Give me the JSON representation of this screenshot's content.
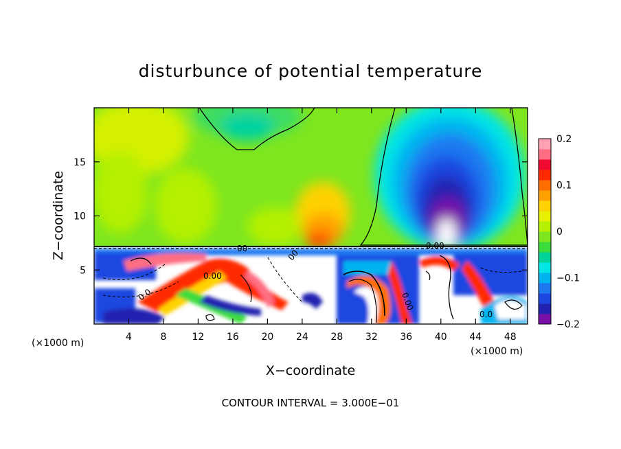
{
  "chart_data": {
    "type": "heatmap",
    "title": "disturbunce of potential temperature",
    "xlabel": "X−coordinate",
    "ylabel": "Z−coordinate",
    "x_unit_left": "(×1000 m)",
    "x_unit_right": "(×1000 m)",
    "xlim": [
      0,
      50
    ],
    "ylim": [
      0,
      20
    ],
    "xticks": [
      4,
      8,
      12,
      16,
      20,
      24,
      28,
      32,
      36,
      40,
      44,
      48
    ],
    "yticks": [
      5,
      10,
      15
    ],
    "colorbar": {
      "ticks": [
        {
          "value": 0.2,
          "label": "0.2"
        },
        {
          "value": 0.1,
          "label": "0.1"
        },
        {
          "value": 0.0,
          "label": "0"
        },
        {
          "value": -0.1,
          "label": "−0.1"
        },
        {
          "value": -0.2,
          "label": "−0.2"
        }
      ],
      "range": [
        -0.2,
        0.2
      ],
      "colors": [
        "#7a0fa8",
        "#2222b0",
        "#1c46e0",
        "#1e78f0",
        "#00b4f0",
        "#00e6e6",
        "#00d29a",
        "#3cdc3c",
        "#7ee61e",
        "#b4f000",
        "#e6f000",
        "#ffd200",
        "#ffa000",
        "#ff6e00",
        "#ff2a00",
        "#f00a32",
        "#ff6e82",
        "#ffa0b4"
      ]
    },
    "contour_label": "0.00",
    "field_labels": [
      "0.0",
      "0.00",
      "00",
      "0.00",
      "00",
      "0.0"
    ],
    "footnote": "CONTOUR INTERVAL = 3.000E−01"
  }
}
